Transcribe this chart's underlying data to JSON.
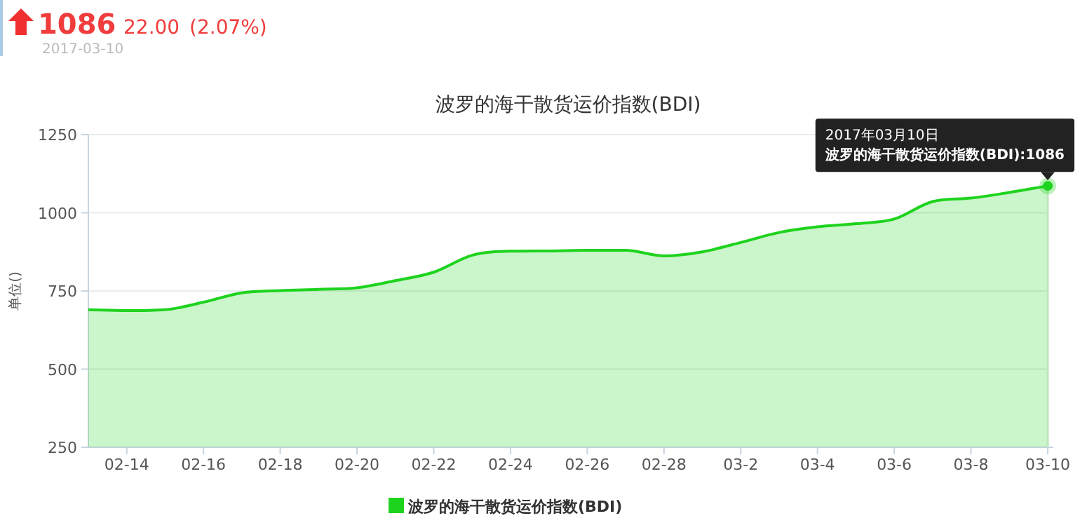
{
  "chart_data": {
    "type": "area",
    "title": "波罗的海干散货运价指数(BDI)",
    "ylabel": "单位()",
    "categories": [
      null,
      "02-14",
      null,
      "02-16",
      null,
      "02-18",
      null,
      "02-20",
      null,
      "02-22",
      null,
      "02-24",
      null,
      "02-26",
      null,
      "02-28",
      null,
      "03-2",
      null,
      "03-4",
      null,
      "03-6",
      null,
      "03-8",
      null,
      "03-10"
    ],
    "series": [
      {
        "name": "波罗的海干散货运价指数(BDI)",
        "color": "#1ed31e",
        "values": [
          690,
          687,
          690,
          714,
          744,
          751,
          755,
          760,
          783,
          810,
          864,
          877,
          878,
          880,
          880,
          862,
          875,
          905,
          937,
          955,
          965,
          980,
          1036,
          1047,
          1065,
          1086
        ]
      }
    ],
    "ylim": [
      250,
      1250
    ],
    "yticks": [
      250,
      500,
      750,
      1000,
      1250
    ],
    "grid": "y",
    "legend": "bottom",
    "marker": "none",
    "annotations": [
      "1086",
      "22.00",
      "(2.07%)",
      "2017-03-10",
      "2017年03月10日",
      "波罗的海干散货运价指数(BDI):1086"
    ]
  }
}
